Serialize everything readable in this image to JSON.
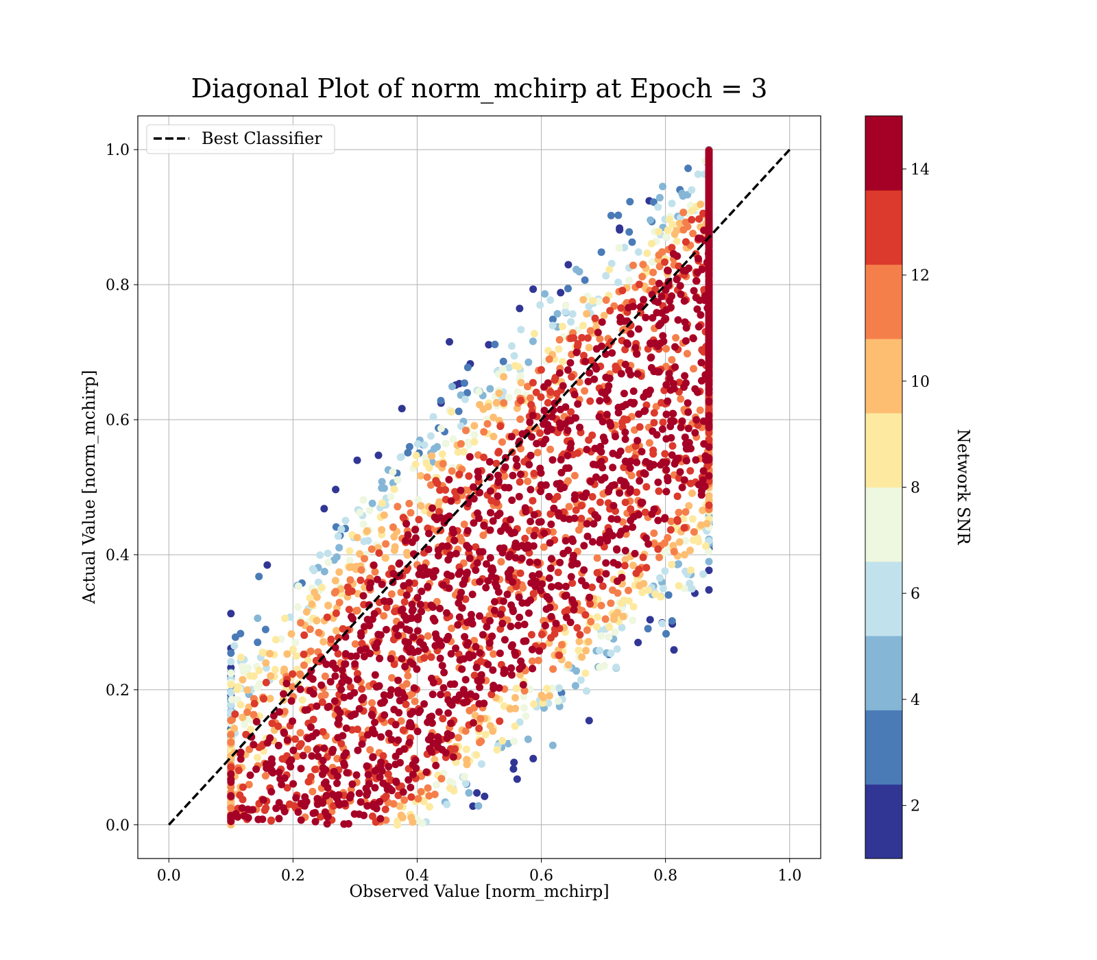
{
  "chart_data": {
    "type": "scatter",
    "title": "Diagonal Plot of norm_mchirp at Epoch = 3",
    "xlabel": "Observed Value [norm_mchirp]",
    "ylabel": "Actual Value [norm_mchirp]",
    "xlim": [
      -0.05,
      1.05
    ],
    "ylim": [
      -0.05,
      1.05
    ],
    "xticks": [
      "0.0",
      "0.2",
      "0.4",
      "0.6",
      "0.8",
      "1.0"
    ],
    "yticks": [
      "0.0",
      "0.2",
      "0.4",
      "0.6",
      "0.8",
      "1.0"
    ],
    "grid": true,
    "legend": {
      "placement": "top-left",
      "entries": [
        "Best Classifier"
      ]
    },
    "reference_line": {
      "name": "Best Classifier",
      "x": [
        0.0,
        1.0
      ],
      "y": [
        0.0,
        1.0
      ],
      "style": "dashed",
      "color": "#000000"
    },
    "scatter_description": {
      "color_variable": "Network SNR",
      "band_center_trend": "actual = observed - 0.16 (approx)",
      "observed_range_estimated": [
        0.11,
        0.86
      ],
      "actual_range_estimated": [
        0.0,
        1.0
      ],
      "low_snr_region": "upper-left edge and bottom-right edge of the point cloud"
    },
    "colorbar": {
      "label": "Network SNR",
      "range": [
        1,
        15
      ],
      "ticks": [
        "2",
        "4",
        "6",
        "8",
        "10",
        "12",
        "14"
      ],
      "bins": [
        {
          "from": 1,
          "to": 2.4,
          "color": "#313695"
        },
        {
          "from": 2.4,
          "to": 3.8,
          "color": "#4a7bb7"
        },
        {
          "from": 3.8,
          "to": 5.2,
          "color": "#85b6d6"
        },
        {
          "from": 5.2,
          "to": 6.6,
          "color": "#c1e2ec"
        },
        {
          "from": 6.6,
          "to": 8.0,
          "color": "#eef7df"
        },
        {
          "from": 8.0,
          "to": 9.4,
          "color": "#fdeaa0"
        },
        {
          "from": 9.4,
          "to": 10.8,
          "color": "#fdbe72"
        },
        {
          "from": 10.8,
          "to": 12.2,
          "color": "#f57f4b"
        },
        {
          "from": 12.2,
          "to": 13.6,
          "color": "#db3a2c"
        },
        {
          "from": 13.6,
          "to": 15,
          "color": "#a50026"
        }
      ]
    }
  }
}
